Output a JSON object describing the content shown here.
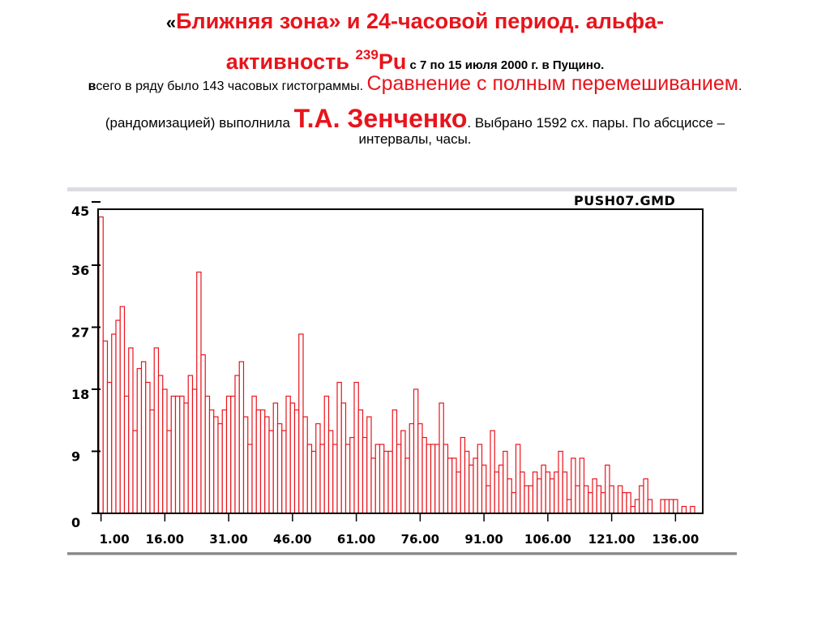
{
  "title": {
    "line1_open_quote": "«",
    "line1_main": "Ближняя зона» и 24-часовой период. альфа-",
    "line2_main": "активность ",
    "line2_sup": "239",
    "line2_pu": "Pu",
    "line2_small": " с 7 по 15 июля 2000 г. в Пущино.",
    "line3_b": "в",
    "line3_small": "сего в ряду было 143 часовых гистограммы. ",
    "line3_big": "Сравнение с полным перемешиванием",
    "line3_end": ".",
    "line4_pre": "(рандомизацией) выполнила ",
    "line4_name": "Т.А. Зенченко",
    "line4_post": ". Выбрано 1592 сх. пары. По абсциссе –",
    "line5": "интервалы, часы."
  },
  "colors": {
    "accent_red": "#e8141c",
    "bar_stroke": "#e8141c",
    "frame": "#000000"
  },
  "chart_data": {
    "type": "bar",
    "title": "PUSH07.GMD",
    "xlabel": "интервалы, часы",
    "ylabel": "",
    "ylim": [
      0,
      45
    ],
    "y_ticks": [
      "0",
      "9",
      "18",
      "27",
      "36",
      "45"
    ],
    "x_ticks": [
      "1.00",
      "16.00",
      "31.00",
      "46.00",
      "61.00",
      "76.00",
      "91.00",
      "106.00",
      "121.00",
      "136.00"
    ],
    "grid": false,
    "legend": null,
    "x_start": 1,
    "values": [
      43,
      25,
      19,
      26,
      28,
      30,
      17,
      24,
      12,
      21,
      22,
      19,
      15,
      24,
      20,
      18,
      12,
      17,
      17,
      17,
      16,
      20,
      18,
      35,
      23,
      17,
      15,
      14,
      13,
      15,
      17,
      17,
      20,
      22,
      14,
      10,
      17,
      15,
      15,
      14,
      12,
      16,
      13,
      12,
      17,
      16,
      15,
      26,
      14,
      10,
      9,
      13,
      10,
      17,
      12,
      10,
      19,
      16,
      10,
      11,
      19,
      15,
      11,
      14,
      8,
      10,
      10,
      9,
      9,
      15,
      10,
      12,
      8,
      13,
      18,
      13,
      11,
      10,
      10,
      10,
      16,
      10,
      8,
      8,
      6,
      11,
      9,
      7,
      8,
      10,
      7,
      4,
      12,
      6,
      7,
      9,
      5,
      3,
      10,
      6,
      4,
      4,
      6,
      5,
      7,
      6,
      5,
      6,
      9,
      6,
      2,
      8,
      4,
      8,
      4,
      3,
      5,
      4,
      3,
      7,
      4,
      0,
      4,
      3,
      3,
      1,
      2,
      4,
      5,
      2,
      0,
      0,
      2,
      2,
      2,
      2,
      0,
      1,
      0,
      1
    ]
  }
}
